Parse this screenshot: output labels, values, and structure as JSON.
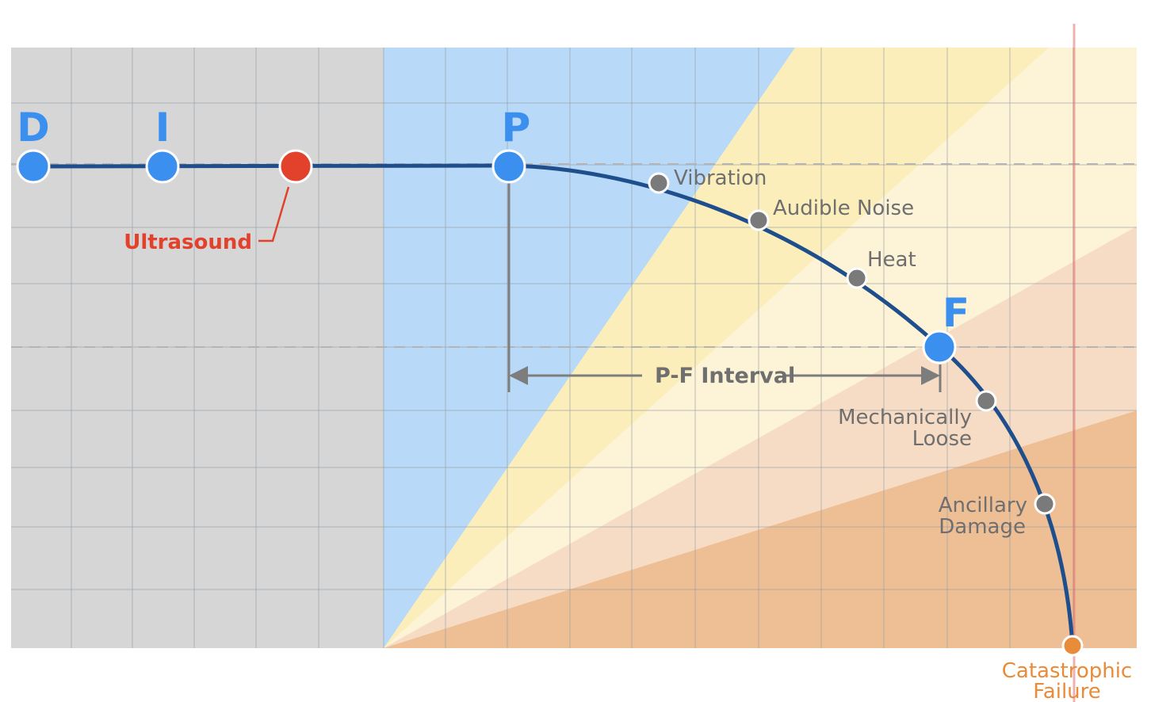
{
  "points": {
    "d": {
      "letter": "D"
    },
    "i": {
      "letter": "I"
    },
    "p": {
      "letter": "P"
    },
    "f": {
      "letter": "F"
    },
    "ultrasound": {
      "label": "Ultrasound"
    }
  },
  "interval": {
    "label": "P-F Interval"
  },
  "symptoms": {
    "vibration": "Vibration",
    "audible_noise": "Audible Noise",
    "heat": "Heat",
    "mechanically_loose": [
      "Mechanically",
      "Loose"
    ],
    "ancillary_damage": [
      "Ancillary",
      "Damage"
    ]
  },
  "failure": {
    "label": [
      "Catastrophic",
      "Failure"
    ]
  },
  "colors": {
    "zone_gray": "#d6d6d6",
    "zone_blue": "#b8d9f7",
    "wedge_yellow": "#fbeebb",
    "wedge_cream": "#fdf3d6",
    "wedge_peach": "#f6dcc4",
    "wedge_orange": "#eebe95",
    "curve": "#1f4e8c",
    "point_blue": "#3a8fef",
    "ultrasound_red": "#e2412b",
    "symptom_gray": "#7a7a7a",
    "failure_orange": "#e88c3a",
    "failure_line": "#e07070"
  }
}
